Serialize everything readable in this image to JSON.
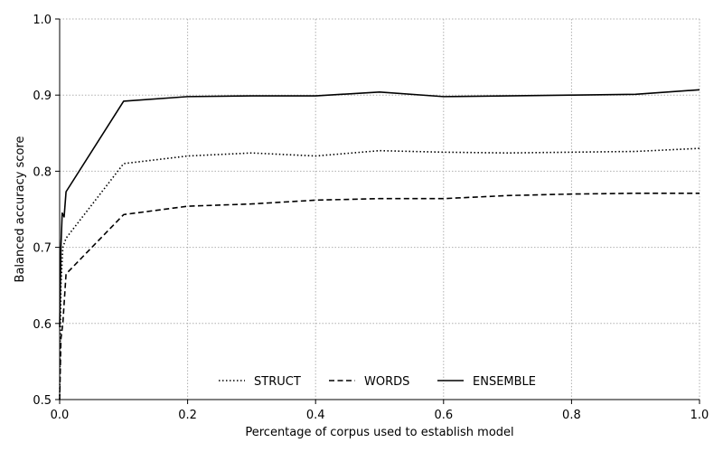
{
  "chart_data": {
    "type": "line",
    "title": "",
    "xlabel": "Percentage of corpus used to establish model",
    "ylabel": "Balanced accuracy score",
    "xlim": [
      0.0,
      1.0
    ],
    "ylim": [
      0.5,
      1.0
    ],
    "xticks": [
      "0.0",
      "0.2",
      "0.4",
      "0.6",
      "0.8",
      "1.0"
    ],
    "yticks": [
      "0.5",
      "0.6",
      "0.7",
      "0.8",
      "0.9",
      "1.0"
    ],
    "grid": true,
    "legend_position": "bottom-center",
    "series": [
      {
        "name": "STRUCT",
        "style": "dotted",
        "color": "#000000",
        "points": [
          [
            0.0,
            0.5
          ],
          [
            0.002,
            0.65
          ],
          [
            0.005,
            0.7
          ],
          [
            0.01,
            0.712
          ],
          [
            0.1,
            0.81
          ],
          [
            0.2,
            0.82
          ],
          [
            0.3,
            0.824
          ],
          [
            0.4,
            0.82
          ],
          [
            0.5,
            0.827
          ],
          [
            0.6,
            0.825
          ],
          [
            0.7,
            0.824
          ],
          [
            0.8,
            0.825
          ],
          [
            0.9,
            0.826
          ],
          [
            1.0,
            0.83
          ]
        ]
      },
      {
        "name": "WORDS",
        "style": "dashed",
        "color": "#000000",
        "points": [
          [
            0.0,
            0.5
          ],
          [
            0.002,
            0.58
          ],
          [
            0.005,
            0.6
          ],
          [
            0.01,
            0.665
          ],
          [
            0.1,
            0.743
          ],
          [
            0.2,
            0.754
          ],
          [
            0.3,
            0.757
          ],
          [
            0.4,
            0.762
          ],
          [
            0.5,
            0.764
          ],
          [
            0.6,
            0.764
          ],
          [
            0.7,
            0.768
          ],
          [
            0.8,
            0.77
          ],
          [
            0.9,
            0.771
          ],
          [
            1.0,
            0.771
          ]
        ]
      },
      {
        "name": "ENSEMBLE",
        "style": "solid",
        "color": "#000000",
        "points": [
          [
            0.0,
            0.595
          ],
          [
            0.002,
            0.7
          ],
          [
            0.004,
            0.745
          ],
          [
            0.007,
            0.74
          ],
          [
            0.01,
            0.773
          ],
          [
            0.1,
            0.892
          ],
          [
            0.2,
            0.898
          ],
          [
            0.3,
            0.899
          ],
          [
            0.4,
            0.899
          ],
          [
            0.5,
            0.904
          ],
          [
            0.6,
            0.898
          ],
          [
            0.7,
            0.899
          ],
          [
            0.8,
            0.9
          ],
          [
            0.9,
            0.901
          ],
          [
            1.0,
            0.907
          ]
        ]
      }
    ]
  }
}
